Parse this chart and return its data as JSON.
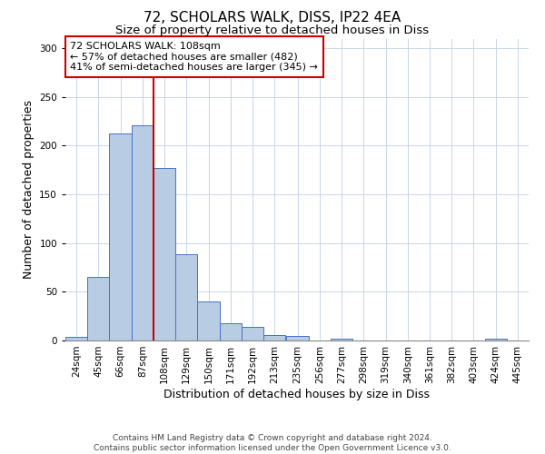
{
  "title": "72, SCHOLARS WALK, DISS, IP22 4EA",
  "subtitle": "Size of property relative to detached houses in Diss",
  "xlabel": "Distribution of detached houses by size in Diss",
  "ylabel": "Number of detached properties",
  "bin_labels": [
    "24sqm",
    "45sqm",
    "66sqm",
    "87sqm",
    "108sqm",
    "129sqm",
    "150sqm",
    "171sqm",
    "192sqm",
    "213sqm",
    "235sqm",
    "256sqm",
    "277sqm",
    "298sqm",
    "319sqm",
    "340sqm",
    "361sqm",
    "382sqm",
    "403sqm",
    "424sqm",
    "445sqm"
  ],
  "bin_edges": [
    24,
    45,
    66,
    87,
    108,
    129,
    150,
    171,
    192,
    213,
    235,
    256,
    277,
    298,
    319,
    340,
    361,
    382,
    403,
    424,
    445
  ],
  "bin_width": 21,
  "bar_values": [
    4,
    65,
    213,
    221,
    177,
    89,
    40,
    18,
    14,
    6,
    5,
    0,
    2,
    0,
    0,
    0,
    0,
    0,
    0,
    2,
    0
  ],
  "bar_color": "#b8cce4",
  "bar_edge_color": "#4472c4",
  "vline_x": 108,
  "vline_color": "#cc0000",
  "annotation_line1": "72 SCHOLARS WALK: 108sqm",
  "annotation_line2": "← 57% of detached houses are smaller (482)",
  "annotation_line3": "41% of semi-detached houses are larger (345) →",
  "annotation_box_color": "#ffffff",
  "annotation_box_edgecolor": "#cc0000",
  "ylim": [
    0,
    310
  ],
  "yticks": [
    0,
    50,
    100,
    150,
    200,
    250,
    300
  ],
  "background_color": "#ffffff",
  "grid_color": "#c8d4e8",
  "footer_line1": "Contains HM Land Registry data © Crown copyright and database right 2024.",
  "footer_line2": "Contains public sector information licensed under the Open Government Licence v3.0.",
  "title_fontsize": 11,
  "subtitle_fontsize": 9.5,
  "xlabel_fontsize": 9,
  "ylabel_fontsize": 9,
  "tick_fontsize": 7.5,
  "annotation_fontsize": 8,
  "footer_fontsize": 6.5
}
